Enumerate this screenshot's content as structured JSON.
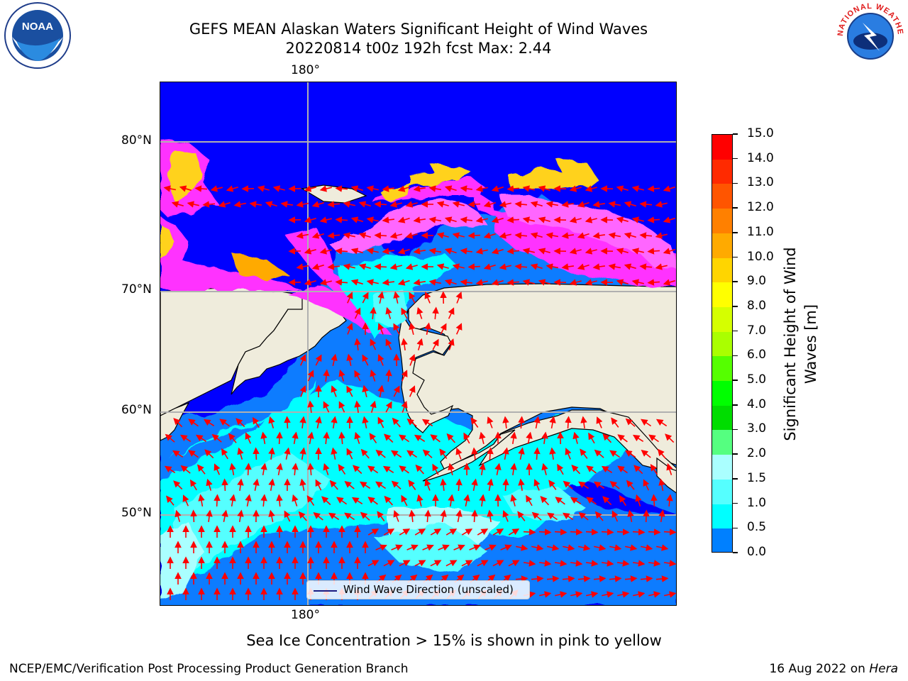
{
  "title": {
    "line1": "GEFS MEAN Alaskan Waters Significant Height of Wind Waves",
    "line2": "20220814 t00z 192h fcst   Max: 2.44"
  },
  "logos": {
    "left_text": "NOAA",
    "right_text": "NATIONAL WEATHER SERVICE"
  },
  "map": {
    "lon_labels": [
      "180°",
      "180°"
    ],
    "lat_labels": [
      "80°N",
      "70°N",
      "60°N",
      "50°N"
    ],
    "legend": "Wind Wave Direction (unscaled)",
    "colors": {
      "land": "#efecdc",
      "ocean_low": "#0000ff",
      "ocean_mid": "#0a7bff",
      "ice_pink": "#ff33ff",
      "ice_yellow": "#ffd21e",
      "arrow": "#ff0000",
      "grid": "#b0b0b0"
    }
  },
  "colorbar": {
    "label_line1": "Significant Height of Wind",
    "label_line2": "Waves [m]",
    "ticks": [
      "15.0",
      "14.0",
      "13.0",
      "12.0",
      "11.0",
      "10.0",
      "9.0",
      "8.0",
      "7.0",
      "6.0",
      "5.0",
      "4.0",
      "3.0",
      "2.0",
      "1.5",
      "1.0",
      "0.5",
      "0.0"
    ],
    "colors": [
      "#ff0000",
      "#ff2a00",
      "#ff5500",
      "#ff8000",
      "#ffaa00",
      "#ffd500",
      "#ffff00",
      "#d5ff00",
      "#aaff00",
      "#55ff00",
      "#00ff00",
      "#00dd00",
      "#55ff80",
      "#aaffff",
      "#55ffff",
      "#00ffff",
      "#0080ff",
      "#0000ff"
    ]
  },
  "footer": {
    "note": "Sea Ice Concentration > 15% is shown in pink to yellow",
    "left": "NCEP/EMC/Verification Post Processing Product Generation Branch",
    "right_prefix": "16 Aug 2022 on ",
    "right_machine": "Hera"
  }
}
